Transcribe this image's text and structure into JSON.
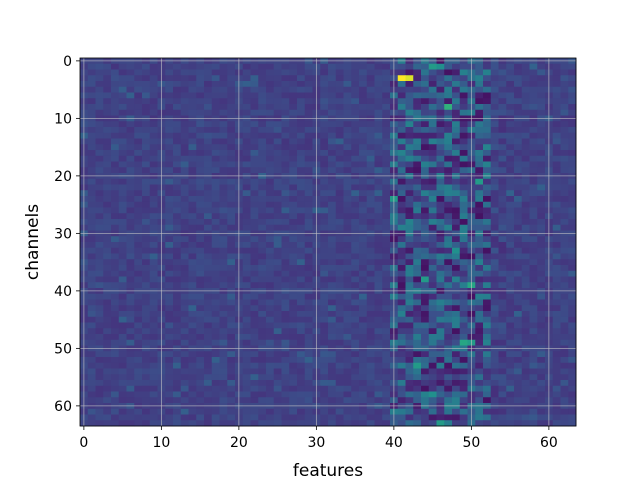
{
  "chart_data": {
    "type": "heatmap",
    "xlabel": "features",
    "ylabel": "channels",
    "x_range": [
      -0.5,
      63.5
    ],
    "y_range": [
      -0.5,
      63.5
    ],
    "y_inverted": true,
    "columns": 64,
    "rows": 64,
    "grid": true,
    "colormap": "viridis",
    "xticks": [
      "0",
      "10",
      "20",
      "30",
      "40",
      "50",
      "60"
    ],
    "xtick_values": [
      0,
      10,
      20,
      30,
      40,
      50,
      60
    ],
    "yticks": [
      "0",
      "10",
      "20",
      "30",
      "40",
      "50",
      "60"
    ],
    "ytick_values": [
      0,
      10,
      20,
      30,
      40,
      50,
      60
    ],
    "background_level": 0.2,
    "texture_band": {
      "x_from": 40,
      "x_to": 54,
      "description_level_range": [
        0.05,
        0.45
      ]
    },
    "hot_cells": [
      {
        "x": 41,
        "y": 3,
        "value": 1.0
      },
      {
        "x": 42,
        "y": 3,
        "value": 0.95
      },
      {
        "x": 47,
        "y": 8,
        "value": 0.65
      },
      {
        "x": 50,
        "y": 39,
        "value": 0.6
      },
      {
        "x": 44,
        "y": 38,
        "value": 0.55
      },
      {
        "x": 51,
        "y": 21,
        "value": 0.55
      },
      {
        "x": 40,
        "y": 24,
        "value": 0.55
      },
      {
        "x": 49,
        "y": 49,
        "value": 0.6
      },
      {
        "x": 50,
        "y": 49,
        "value": 0.55
      },
      {
        "x": 45,
        "y": 1,
        "value": 0.55
      },
      {
        "x": 46,
        "y": 1,
        "value": 0.5
      },
      {
        "x": 43,
        "y": 53,
        "value": 0.55
      },
      {
        "x": 45,
        "y": 58,
        "value": 0.5
      },
      {
        "x": 46,
        "y": 63,
        "value": 0.55
      },
      {
        "x": 48,
        "y": 33,
        "value": 0.5
      },
      {
        "x": 52,
        "y": 15,
        "value": 0.45
      },
      {
        "x": 41,
        "y": 16,
        "value": 0.45
      }
    ]
  }
}
